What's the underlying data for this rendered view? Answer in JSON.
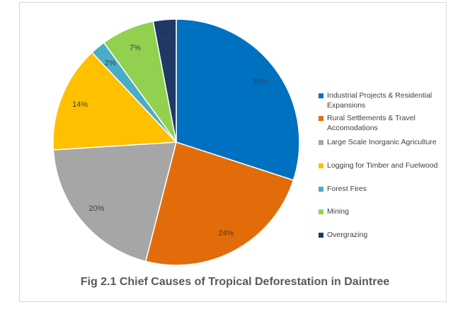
{
  "chart_data": {
    "type": "pie",
    "title": "Fig 2.1 Chief Causes of Tropical Deforestation in Daintree",
    "legend_position": "right",
    "slices": [
      {
        "label": "Industrial Projects & Residential Expansions",
        "value": 30,
        "display": "30%",
        "color": "#0070C0"
      },
      {
        "label": "Rural Settlements & Travel Accomodations",
        "value": 24,
        "display": "24%",
        "color": "#E36C0A"
      },
      {
        "label": "Large Scale Inorganic Agriculture",
        "value": 20,
        "display": "20%",
        "color": "#A6A6A6"
      },
      {
        "label": "Logging for Timber and Fuelwood",
        "value": 14,
        "display": "14%",
        "color": "#FFC000"
      },
      {
        "label": "Forest Fires",
        "value": 2,
        "display": "2%",
        "color": "#4BACC6"
      },
      {
        "label": "Mining",
        "value": 7,
        "display": "7%",
        "color": "#92D050"
      },
      {
        "label": "Overgrazing",
        "value": 3,
        "display": "3%",
        "color": "#1F3864"
      }
    ]
  }
}
